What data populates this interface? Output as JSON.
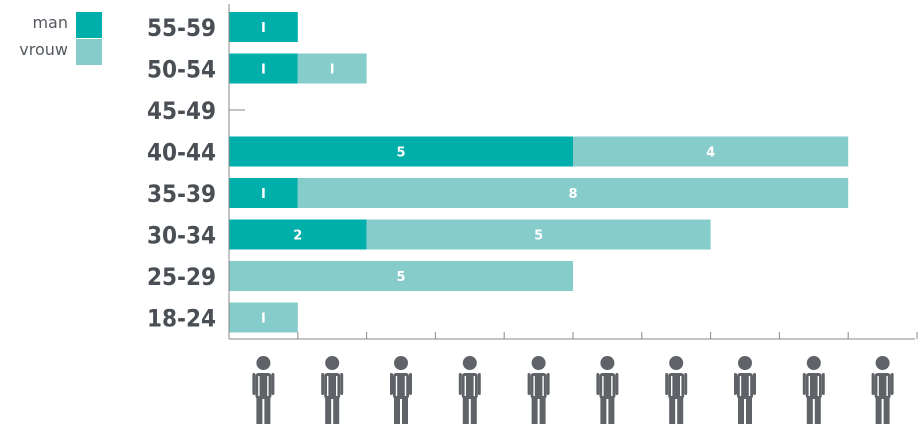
{
  "chart_data": {
    "type": "bar",
    "orientation": "horizontal",
    "stacked": true,
    "categories": [
      "55-59",
      "50-54",
      "45-49",
      "40-44",
      "35-39",
      "30-34",
      "25-29",
      "18-24"
    ],
    "series": [
      {
        "name": "man",
        "color": "#00aeaa",
        "values": [
          1,
          1,
          0,
          5,
          1,
          2,
          0,
          0
        ]
      },
      {
        "name": "vrouw",
        "color": "#86cccb",
        "values": [
          0,
          1,
          0,
          4,
          8,
          5,
          5,
          1
        ]
      }
    ],
    "value_labels": {
      "man": [
        "I",
        "I",
        "",
        "5",
        "I",
        "2",
        "",
        ""
      ],
      "vrouw": [
        "",
        "I",
        "",
        "4",
        "8",
        "5",
        "5",
        "I"
      ]
    },
    "xlim": [
      0,
      10
    ],
    "x_ticks": [
      1,
      2,
      3,
      4,
      5,
      6,
      7,
      8,
      9,
      10
    ],
    "x_axis_icon": "person-icon",
    "legend": {
      "position": "top-left",
      "entries": [
        "man",
        "vrouw"
      ]
    },
    "grid": false,
    "axis_color": "#888888",
    "icon_color": "#5f6368"
  }
}
